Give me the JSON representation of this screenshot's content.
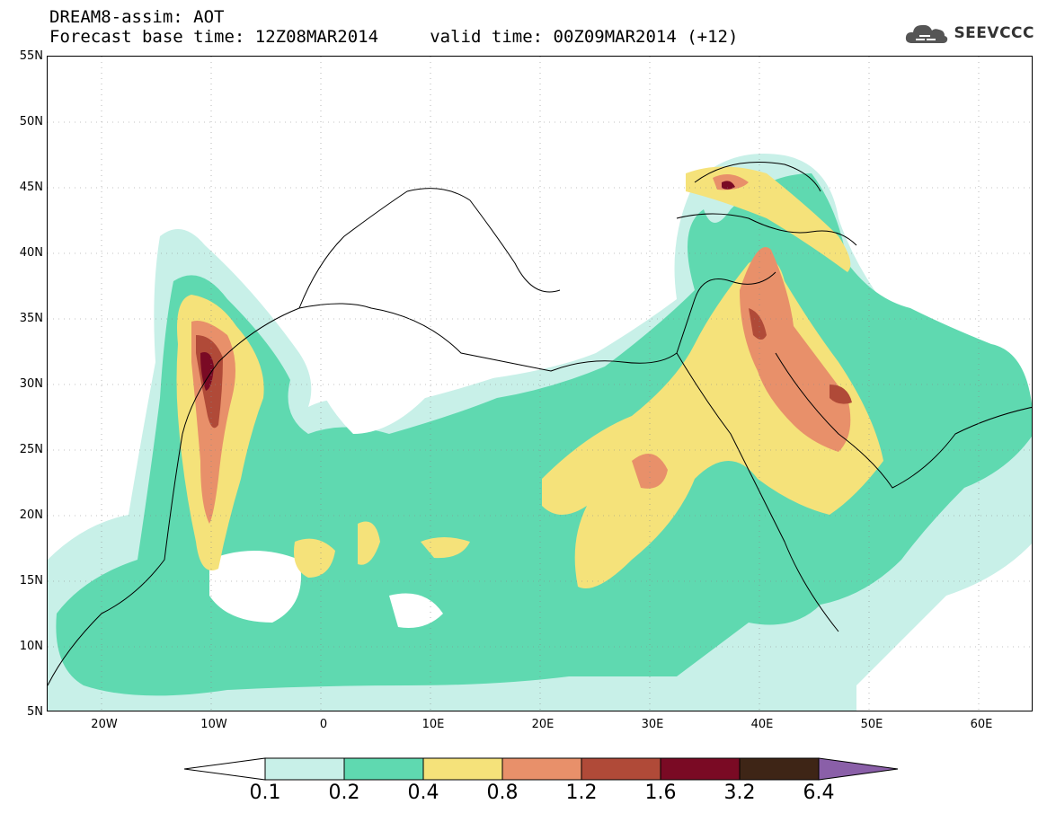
{
  "title": {
    "line1": "DREAM8-assim: AOT",
    "line2": "Forecast base time: 12Z08MAR2014     valid time: 00Z09MAR2014 (+12)"
  },
  "logo": {
    "text": "SEEVCCC",
    "icon": "cloud-icon"
  },
  "axes": {
    "lat_labels": [
      "55N",
      "50N",
      "45N",
      "40N",
      "35N",
      "30N",
      "25N",
      "20N",
      "15N",
      "10N",
      "5N"
    ],
    "lon_labels": [
      "20W",
      "10W",
      "0",
      "10E",
      "20E",
      "30E",
      "40E",
      "50E",
      "60E"
    ],
    "lon_range": [
      -25,
      65
    ],
    "lat_range": [
      5,
      55
    ]
  },
  "legend": {
    "ticks": [
      "0.1",
      "0.2",
      "0.4",
      "0.8",
      "1.2",
      "1.6",
      "3.2",
      "6.4"
    ],
    "colors": [
      "#ffffff",
      "#c8f0e8",
      "#5fd9b0",
      "#f5e27a",
      "#e8906a",
      "#b04a38",
      "#7a0a24",
      "#3e2516",
      "#8a5fa8"
    ]
  },
  "colors": {
    "aot_0_1": "#c8f0e8",
    "aot_0_2": "#5fd9b0",
    "aot_0_4": "#f5e27a",
    "aot_0_8": "#e8906a",
    "aot_1_2": "#b04a38",
    "aot_1_6": "#7a0a24"
  }
}
